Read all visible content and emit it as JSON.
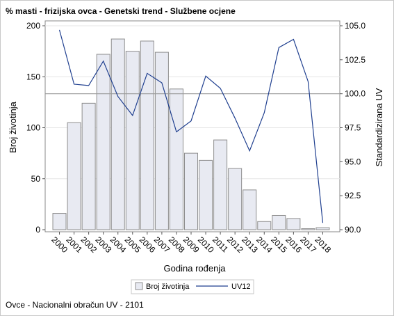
{
  "title": "% masti - frizijska ovca - Genetski trend - Službene ocjene",
  "footnote": "Ovce - Nacionalni obračun UV - 2101",
  "chart_data": {
    "type": "bar+line",
    "categories": [
      "2000",
      "2001",
      "2002",
      "2003",
      "2004",
      "2005",
      "2006",
      "2007",
      "2008",
      "2009",
      "2010",
      "2011",
      "2012",
      "2013",
      "2014",
      "2015",
      "2016",
      "2017",
      "2018"
    ],
    "series": [
      {
        "name": "Broj životinja",
        "type": "bar",
        "axis": "left",
        "values": [
          16,
          105,
          124,
          172,
          187,
          175,
          185,
          174,
          138,
          75,
          68,
          88,
          60,
          39,
          8,
          14,
          11,
          1,
          2
        ]
      },
      {
        "name": "UV12",
        "type": "line",
        "axis": "right",
        "values": [
          104.7,
          100.7,
          100.6,
          102.4,
          99.8,
          98.4,
          101.5,
          100.8,
          97.2,
          98.0,
          101.3,
          100.4,
          98.2,
          95.8,
          98.6,
          103.4,
          104.0,
          100.9,
          90.5
        ]
      }
    ],
    "xlabel": "Godina rođenja",
    "ylabel_left": "Broj životinja",
    "ylabel_right": "Standardizirana UV",
    "ylim_left": [
      0,
      200
    ],
    "ylim_right": [
      90.0,
      105.0
    ],
    "yticks_left": [
      "0",
      "50",
      "100",
      "150",
      "200"
    ],
    "yticks_right": [
      "90.0",
      "92.5",
      "95.0",
      "97.5",
      "100.0",
      "102.5",
      "105.0"
    ],
    "reference_line_right": 100.0,
    "legend_position": "bottom",
    "colors": {
      "bar_fill": "#e8eaf2",
      "bar_stroke": "#8e8e8e",
      "line": "#1f3f8f",
      "reference": "#9a9a9a",
      "grid": "#e6e6e6"
    }
  }
}
